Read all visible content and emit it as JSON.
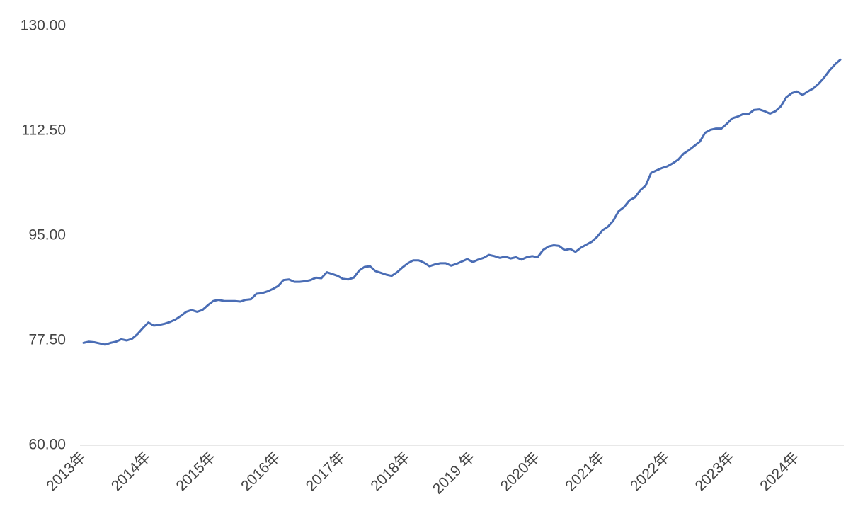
{
  "chart_data": {
    "type": "line",
    "categories": [
      "2013年",
      null,
      null,
      null,
      null,
      null,
      null,
      null,
      null,
      null,
      null,
      null,
      "2014年",
      null,
      null,
      null,
      null,
      null,
      null,
      null,
      null,
      null,
      null,
      null,
      "2015年",
      null,
      null,
      null,
      null,
      null,
      null,
      null,
      null,
      null,
      null,
      null,
      "2016年",
      null,
      null,
      null,
      null,
      null,
      null,
      null,
      null,
      null,
      null,
      null,
      "2017年",
      null,
      null,
      null,
      null,
      null,
      null,
      null,
      null,
      null,
      null,
      null,
      "2018年",
      null,
      null,
      null,
      null,
      null,
      null,
      null,
      null,
      null,
      null,
      null,
      "2019 年",
      null,
      null,
      null,
      null,
      null,
      null,
      null,
      null,
      null,
      null,
      null,
      "2020年",
      null,
      null,
      null,
      null,
      null,
      null,
      null,
      null,
      null,
      null,
      null,
      "2021年",
      null,
      null,
      null,
      null,
      null,
      null,
      null,
      null,
      null,
      null,
      null,
      "2022年",
      null,
      null,
      null,
      null,
      null,
      null,
      null,
      null,
      null,
      null,
      null,
      "2023年",
      null,
      null,
      null,
      null,
      null,
      null,
      null,
      null,
      null,
      null,
      null,
      "2024年",
      null,
      null,
      null,
      null,
      null,
      null,
      null,
      null
    ],
    "values": [
      77.1,
      77.3,
      77.2,
      77.0,
      76.8,
      77.1,
      77.3,
      77.7,
      77.5,
      77.8,
      78.6,
      79.6,
      80.5,
      80.0,
      80.1,
      80.3,
      80.6,
      81.0,
      81.6,
      82.3,
      82.6,
      82.3,
      82.6,
      83.4,
      84.1,
      84.3,
      84.1,
      84.1,
      84.1,
      84.0,
      84.3,
      84.4,
      85.3,
      85.4,
      85.7,
      86.1,
      86.6,
      87.6,
      87.7,
      87.3,
      87.3,
      87.4,
      87.6,
      88.0,
      87.9,
      88.9,
      88.6,
      88.3,
      87.8,
      87.7,
      88.0,
      89.2,
      89.8,
      89.9,
      89.1,
      88.8,
      88.5,
      88.3,
      88.9,
      89.7,
      90.4,
      90.9,
      90.9,
      90.5,
      89.9,
      90.2,
      90.4,
      90.4,
      90.0,
      90.3,
      90.7,
      91.1,
      90.6,
      91.0,
      91.3,
      91.8,
      91.6,
      91.3,
      91.5,
      91.2,
      91.4,
      91.0,
      91.4,
      91.6,
      91.4,
      92.6,
      93.2,
      93.4,
      93.3,
      92.6,
      92.8,
      92.3,
      93.0,
      93.5,
      94.0,
      94.8,
      95.9,
      96.5,
      97.5,
      99.1,
      99.8,
      100.9,
      101.4,
      102.6,
      103.4,
      105.5,
      105.9,
      106.3,
      106.6,
      107.1,
      107.7,
      108.7,
      109.3,
      110.0,
      110.7,
      112.2,
      112.7,
      112.9,
      112.9,
      113.7,
      114.6,
      114.9,
      115.3,
      115.3,
      116.0,
      116.1,
      115.8,
      115.4,
      115.8,
      116.6,
      118.1,
      118.8,
      119.1,
      118.5,
      119.1,
      119.6,
      120.4,
      121.4,
      122.6,
      123.6,
      124.4
    ],
    "color": "#4a6db5",
    "ylim": [
      60,
      130
    ],
    "yticks": [
      {
        "value": 60,
        "label": "60.00"
      },
      {
        "value": 77.5,
        "label": "77.50"
      },
      {
        "value": 95,
        "label": "95.00"
      },
      {
        "value": 112.5,
        "label": "112.50"
      },
      {
        "value": 130,
        "label": "130.00"
      }
    ],
    "grid": false
  }
}
